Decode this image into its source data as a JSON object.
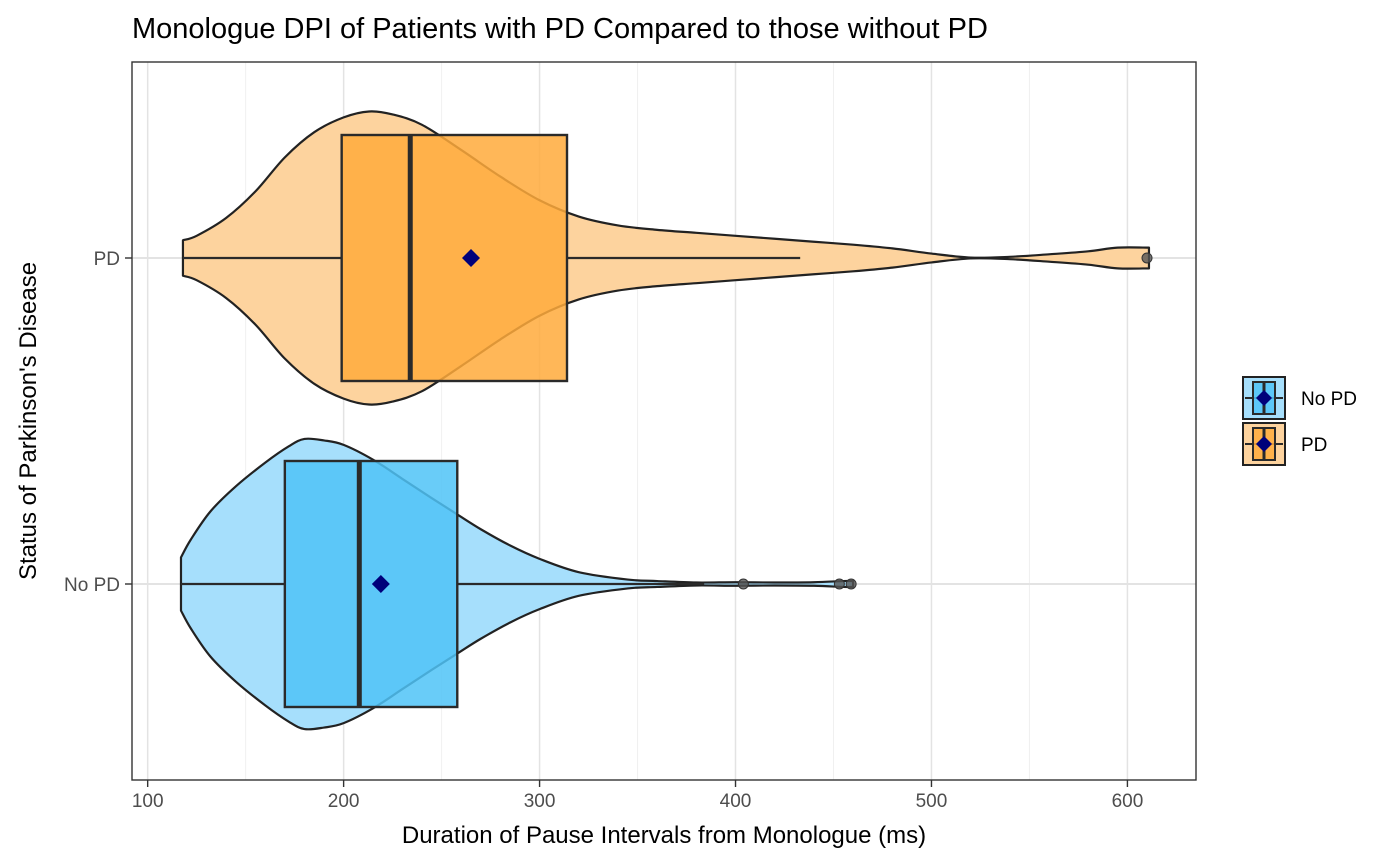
{
  "chart_data": {
    "type": "violin-box",
    "title": "Monologue DPI of Patients with PD Compared to those without PD",
    "xlabel": "Duration of Pause Intervals from Monologue (ms)",
    "ylabel": "Status of Parkinson's Disease",
    "xlim": [
      92,
      635
    ],
    "x_ticks": [
      100,
      200,
      300,
      400,
      500,
      600
    ],
    "x_minor_ticks": [
      150,
      250,
      350,
      450,
      550
    ],
    "grid": true,
    "orientation": "horizontal",
    "legend_position": "right",
    "mean_marker_color": "#00007a",
    "categories": [
      "No PD",
      "PD"
    ],
    "series": [
      {
        "name": "No PD",
        "color": "#4fc3f7",
        "violin_color": "#a6dffc",
        "box": {
          "min": 117,
          "q1": 170,
          "median": 208,
          "q3": 258,
          "max": 384
        },
        "mean": 219,
        "outliers": [
          404,
          453,
          459
        ],
        "density": [
          [
            117,
            0.18
          ],
          [
            122,
            0.3
          ],
          [
            132,
            0.49
          ],
          [
            145,
            0.66
          ],
          [
            160,
            0.82
          ],
          [
            172,
            0.93
          ],
          [
            180,
            0.98
          ],
          [
            190,
            0.97
          ],
          [
            200,
            0.94
          ],
          [
            215,
            0.84
          ],
          [
            230,
            0.71
          ],
          [
            245,
            0.58
          ],
          [
            258,
            0.47
          ],
          [
            270,
            0.37
          ],
          [
            285,
            0.26
          ],
          [
            300,
            0.17
          ],
          [
            320,
            0.08
          ],
          [
            345,
            0.03
          ],
          [
            360,
            0.02
          ],
          [
            380,
            0.01
          ],
          [
            400,
            0.012
          ],
          [
            420,
            0.01
          ],
          [
            440,
            0.012
          ],
          [
            455,
            0.02
          ],
          [
            460,
            0.02
          ]
        ]
      },
      {
        "name": "PD",
        "color": "#ffaa3b",
        "violin_color": "#fdd39e",
        "box": {
          "min": 118,
          "q1": 199,
          "median": 234,
          "q3": 314,
          "max": 433
        },
        "mean": 265,
        "outliers": [
          610
        ],
        "density": [
          [
            118,
            0.12
          ],
          [
            125,
            0.15
          ],
          [
            140,
            0.27
          ],
          [
            155,
            0.45
          ],
          [
            170,
            0.68
          ],
          [
            185,
            0.85
          ],
          [
            200,
            0.95
          ],
          [
            213,
            0.99
          ],
          [
            225,
            0.97
          ],
          [
            240,
            0.9
          ],
          [
            260,
            0.73
          ],
          [
            280,
            0.55
          ],
          [
            300,
            0.39
          ],
          [
            320,
            0.28
          ],
          [
            340,
            0.22
          ],
          [
            360,
            0.19
          ],
          [
            380,
            0.17
          ],
          [
            400,
            0.15
          ],
          [
            420,
            0.13
          ],
          [
            440,
            0.11
          ],
          [
            460,
            0.09
          ],
          [
            480,
            0.065
          ],
          [
            500,
            0.03
          ],
          [
            520,
            0.003
          ],
          [
            540,
            0.008
          ],
          [
            560,
            0.025
          ],
          [
            580,
            0.045
          ],
          [
            595,
            0.07
          ],
          [
            611,
            0.07
          ]
        ]
      }
    ]
  }
}
